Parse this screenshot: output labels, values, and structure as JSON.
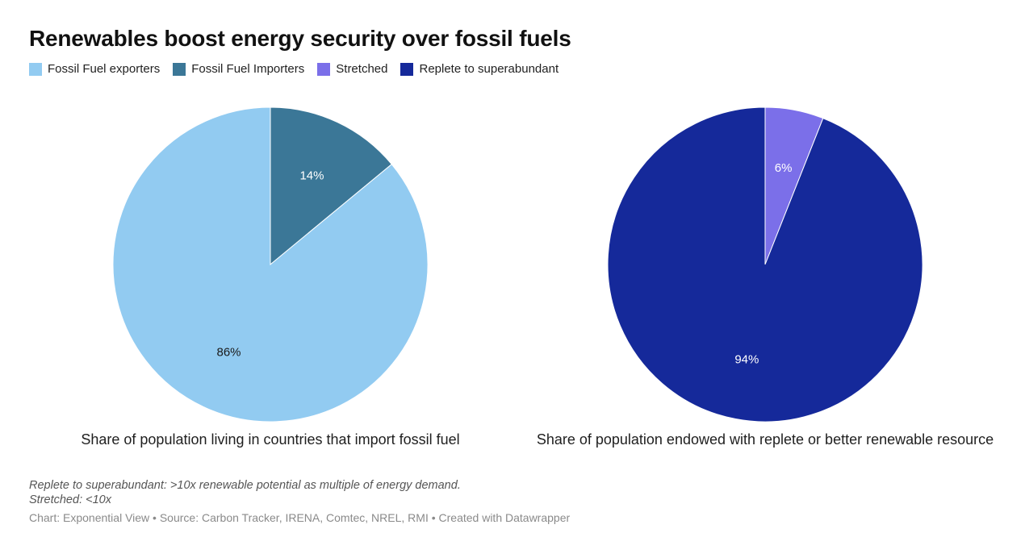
{
  "chart_data": {
    "title": "Renewables boost energy security over fossil fuels",
    "legend": {
      "placement": "top-left",
      "items": [
        {
          "label": "Fossil Fuel exporters",
          "color": "#92cbf1"
        },
        {
          "label": "Fossil Fuel Importers",
          "color": "#3b7797"
        },
        {
          "label": "Stretched",
          "color": "#7b6fe9"
        },
        {
          "label": "Replete to superabundant",
          "color": "#15299a"
        }
      ]
    },
    "charts": [
      {
        "type": "pie",
        "caption": "Share of population living in countries that import fossil fuel",
        "slices": [
          {
            "name": "Fossil Fuel Importers",
            "value": 14,
            "label": "14%",
            "color": "#3b7797",
            "label_color": "#ffffff"
          },
          {
            "name": "Fossil Fuel exporters",
            "value": 86,
            "label": "86%",
            "color": "#92cbf1",
            "label_color": "#1a1a1a"
          }
        ]
      },
      {
        "type": "pie",
        "caption": "Share of population endowed with replete or better renewable resource",
        "slices": [
          {
            "name": "Stretched",
            "value": 6,
            "label": "6%",
            "color": "#7b6fe9",
            "label_color": "#ffffff"
          },
          {
            "name": "Replete to superabundant",
            "value": 94,
            "label": "94%",
            "color": "#15299a",
            "label_color": "#ffffff"
          }
        ]
      }
    ],
    "notes": [
      "Replete to superabundant: >10x renewable potential as multiple of energy demand.",
      "Stretched: <10x"
    ],
    "source": "Chart: Exponential View • Source: Carbon Tracker, IRENA, Comtec, NREL, RMI • Created with Datawrapper"
  }
}
